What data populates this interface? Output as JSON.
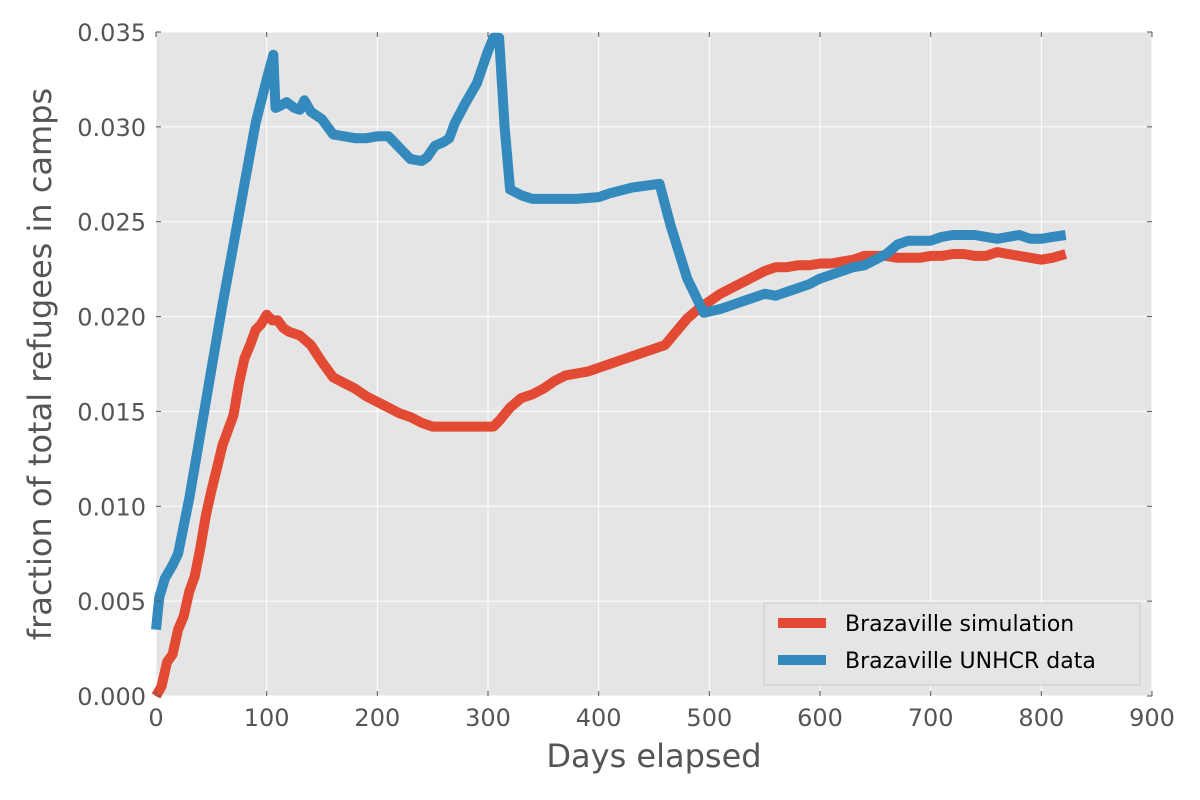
{
  "chart_data": {
    "type": "line",
    "xlabel": "Days elapsed",
    "ylabel": "fraction of total refugees in camps",
    "xlim": [
      0,
      900
    ],
    "ylim": [
      0,
      0.035
    ],
    "xticks": [
      0,
      100,
      200,
      300,
      400,
      500,
      600,
      700,
      800,
      900
    ],
    "yticks": [
      0.0,
      0.005,
      0.01,
      0.015,
      0.02,
      0.025,
      0.03,
      0.035
    ],
    "xtick_labels": [
      "0",
      "100",
      "200",
      "300",
      "400",
      "500",
      "600",
      "700",
      "800",
      "900"
    ],
    "ytick_labels": [
      "0.000",
      "0.005",
      "0.010",
      "0.015",
      "0.020",
      "0.025",
      "0.030",
      "0.035"
    ],
    "grid": true,
    "legend_position": "lower-right",
    "background": "#e5e5e5",
    "series": [
      {
        "name": "Brazaville simulation",
        "color": "#e24a33",
        "points": [
          [
            0,
            0.0
          ],
          [
            5,
            0.0005
          ],
          [
            10,
            0.0018
          ],
          [
            15,
            0.0022
          ],
          [
            20,
            0.0035
          ],
          [
            25,
            0.0042
          ],
          [
            30,
            0.0055
          ],
          [
            35,
            0.0063
          ],
          [
            40,
            0.0078
          ],
          [
            45,
            0.0095
          ],
          [
            50,
            0.0108
          ],
          [
            55,
            0.012
          ],
          [
            60,
            0.0132
          ],
          [
            65,
            0.014
          ],
          [
            70,
            0.0148
          ],
          [
            75,
            0.0165
          ],
          [
            80,
            0.0178
          ],
          [
            85,
            0.0185
          ],
          [
            90,
            0.0193
          ],
          [
            95,
            0.0196
          ],
          [
            100,
            0.0201
          ],
          [
            105,
            0.0198
          ],
          [
            110,
            0.0198
          ],
          [
            115,
            0.0194
          ],
          [
            120,
            0.0192
          ],
          [
            130,
            0.019
          ],
          [
            140,
            0.0185
          ],
          [
            150,
            0.0176
          ],
          [
            160,
            0.0168
          ],
          [
            170,
            0.0165
          ],
          [
            180,
            0.0162
          ],
          [
            190,
            0.0158
          ],
          [
            200,
            0.0155
          ],
          [
            210,
            0.0152
          ],
          [
            220,
            0.0149
          ],
          [
            230,
            0.0147
          ],
          [
            240,
            0.0144
          ],
          [
            250,
            0.0142
          ],
          [
            260,
            0.0142
          ],
          [
            270,
            0.0142
          ],
          [
            280,
            0.0142
          ],
          [
            290,
            0.0142
          ],
          [
            300,
            0.0142
          ],
          [
            305,
            0.0142
          ],
          [
            310,
            0.0145
          ],
          [
            320,
            0.0152
          ],
          [
            330,
            0.0157
          ],
          [
            340,
            0.0159
          ],
          [
            350,
            0.0162
          ],
          [
            360,
            0.0166
          ],
          [
            370,
            0.0169
          ],
          [
            380,
            0.017
          ],
          [
            390,
            0.0171
          ],
          [
            400,
            0.0173
          ],
          [
            410,
            0.0175
          ],
          [
            420,
            0.0177
          ],
          [
            430,
            0.0179
          ],
          [
            440,
            0.0181
          ],
          [
            450,
            0.0183
          ],
          [
            460,
            0.0185
          ],
          [
            470,
            0.0192
          ],
          [
            480,
            0.0199
          ],
          [
            490,
            0.0204
          ],
          [
            500,
            0.0208
          ],
          [
            510,
            0.0212
          ],
          [
            520,
            0.0215
          ],
          [
            530,
            0.0218
          ],
          [
            540,
            0.0221
          ],
          [
            550,
            0.0224
          ],
          [
            560,
            0.0226
          ],
          [
            570,
            0.0226
          ],
          [
            580,
            0.0227
          ],
          [
            590,
            0.0227
          ],
          [
            600,
            0.0228
          ],
          [
            610,
            0.0228
          ],
          [
            620,
            0.0229
          ],
          [
            630,
            0.023
          ],
          [
            640,
            0.0232
          ],
          [
            650,
            0.0232
          ],
          [
            660,
            0.0232
          ],
          [
            670,
            0.0231
          ],
          [
            680,
            0.0231
          ],
          [
            690,
            0.0231
          ],
          [
            700,
            0.0232
          ],
          [
            710,
            0.0232
          ],
          [
            720,
            0.0233
          ],
          [
            730,
            0.0233
          ],
          [
            740,
            0.0232
          ],
          [
            750,
            0.0232
          ],
          [
            760,
            0.0234
          ],
          [
            770,
            0.0233
          ],
          [
            780,
            0.0232
          ],
          [
            790,
            0.0231
          ],
          [
            800,
            0.023
          ],
          [
            810,
            0.0231
          ],
          [
            822,
            0.0233
          ]
        ]
      },
      {
        "name": "Brazaville UNHCR data",
        "color": "#348abd",
        "points": [
          [
            0,
            0.0035
          ],
          [
            3,
            0.0052
          ],
          [
            8,
            0.0062
          ],
          [
            15,
            0.0069
          ],
          [
            20,
            0.0075
          ],
          [
            30,
            0.0104
          ],
          [
            40,
            0.0138
          ],
          [
            50,
            0.0172
          ],
          [
            60,
            0.0206
          ],
          [
            70,
            0.0238
          ],
          [
            80,
            0.027
          ],
          [
            90,
            0.0302
          ],
          [
            100,
            0.0325
          ],
          [
            106,
            0.0338
          ],
          [
            108,
            0.031
          ],
          [
            112,
            0.0311
          ],
          [
            118,
            0.0313
          ],
          [
            125,
            0.031
          ],
          [
            130,
            0.0309
          ],
          [
            134,
            0.0314
          ],
          [
            140,
            0.0308
          ],
          [
            150,
            0.0304
          ],
          [
            160,
            0.0296
          ],
          [
            170,
            0.0295
          ],
          [
            180,
            0.0294
          ],
          [
            190,
            0.0294
          ],
          [
            200,
            0.0295
          ],
          [
            210,
            0.0295
          ],
          [
            220,
            0.0289
          ],
          [
            230,
            0.0283
          ],
          [
            240,
            0.0282
          ],
          [
            245,
            0.0284
          ],
          [
            252,
            0.029
          ],
          [
            260,
            0.0292
          ],
          [
            265,
            0.0294
          ],
          [
            270,
            0.0302
          ],
          [
            280,
            0.0313
          ],
          [
            290,
            0.0323
          ],
          [
            300,
            0.034
          ],
          [
            305,
            0.0347
          ],
          [
            310,
            0.0347
          ],
          [
            315,
            0.03
          ],
          [
            320,
            0.0267
          ],
          [
            330,
            0.0264
          ],
          [
            340,
            0.0262
          ],
          [
            350,
            0.0262
          ],
          [
            360,
            0.0262
          ],
          [
            380,
            0.0262
          ],
          [
            400,
            0.0263
          ],
          [
            410,
            0.0265
          ],
          [
            430,
            0.0268
          ],
          [
            455,
            0.027
          ],
          [
            465,
            0.0248
          ],
          [
            480,
            0.022
          ],
          [
            490,
            0.0208
          ],
          [
            495,
            0.0202
          ],
          [
            510,
            0.0204
          ],
          [
            520,
            0.0206
          ],
          [
            530,
            0.0208
          ],
          [
            540,
            0.021
          ],
          [
            550,
            0.0212
          ],
          [
            560,
            0.0211
          ],
          [
            570,
            0.0213
          ],
          [
            580,
            0.0215
          ],
          [
            590,
            0.0217
          ],
          [
            600,
            0.022
          ],
          [
            610,
            0.0222
          ],
          [
            620,
            0.0224
          ],
          [
            630,
            0.0226
          ],
          [
            640,
            0.0227
          ],
          [
            650,
            0.023
          ],
          [
            660,
            0.0233
          ],
          [
            670,
            0.0238
          ],
          [
            680,
            0.024
          ],
          [
            690,
            0.024
          ],
          [
            700,
            0.024
          ],
          [
            710,
            0.0242
          ],
          [
            720,
            0.0243
          ],
          [
            730,
            0.0243
          ],
          [
            740,
            0.0243
          ],
          [
            750,
            0.0242
          ],
          [
            760,
            0.0241
          ],
          [
            770,
            0.0242
          ],
          [
            780,
            0.0243
          ],
          [
            790,
            0.0241
          ],
          [
            800,
            0.0241
          ],
          [
            810,
            0.0242
          ],
          [
            822,
            0.0243
          ]
        ]
      }
    ]
  }
}
